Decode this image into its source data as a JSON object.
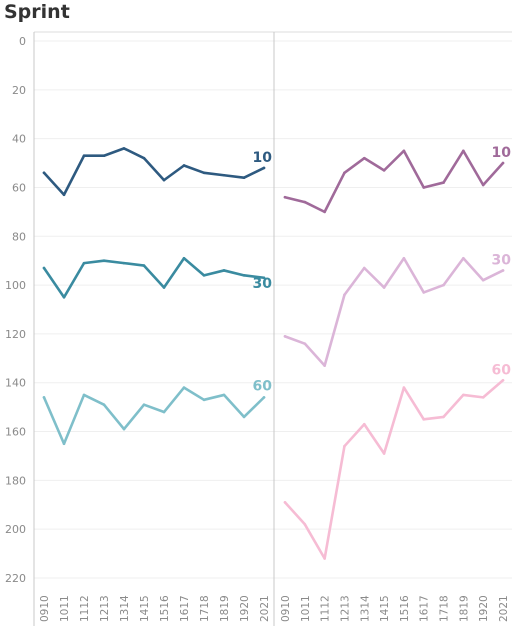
{
  "title": "Sprint",
  "chart_data": {
    "type": "line",
    "title": "Sprint",
    "ylim": [
      0,
      220
    ],
    "y_reversed": true,
    "y_ticks": [
      0,
      20,
      40,
      60,
      80,
      100,
      120,
      140,
      160,
      180,
      200,
      220
    ],
    "x": [
      "0910",
      "1011",
      "1112",
      "1213",
      "1314",
      "1415",
      "1516",
      "1617",
      "1718",
      "1819",
      "1920",
      "2021"
    ],
    "grid": true,
    "panels": [
      {
        "series": [
          {
            "name": "10",
            "color": "#2e5a80",
            "values": [
              54,
              63,
              47,
              47,
              44,
              48,
              57,
              51,
              54,
              55,
              56,
              52
            ]
          },
          {
            "name": "30",
            "color": "#3a8ba0",
            "values": [
              93,
              105,
              91,
              90,
              91,
              92,
              101,
              89,
              96,
              94,
              96,
              97
            ]
          },
          {
            "name": "60",
            "color": "#7fbfca",
            "values": [
              146,
              165,
              145,
              149,
              159,
              149,
              152,
              142,
              147,
              145,
              154,
              146
            ]
          }
        ]
      },
      {
        "series": [
          {
            "name": "10",
            "color": "#a06a9a",
            "values": [
              64,
              66,
              70,
              54,
              48,
              53,
              45,
              60,
              58,
              45,
              59,
              50
            ]
          },
          {
            "name": "30",
            "color": "#dbb5d8",
            "values": [
              121,
              124,
              133,
              104,
              93,
              101,
              89,
              103,
              100,
              89,
              98,
              94
            ]
          },
          {
            "name": "60",
            "color": "#f6bcd4",
            "values": [
              189,
              198,
              212,
              166,
              157,
              169,
              142,
              155,
              154,
              145,
              146,
              139
            ]
          }
        ]
      }
    ]
  }
}
